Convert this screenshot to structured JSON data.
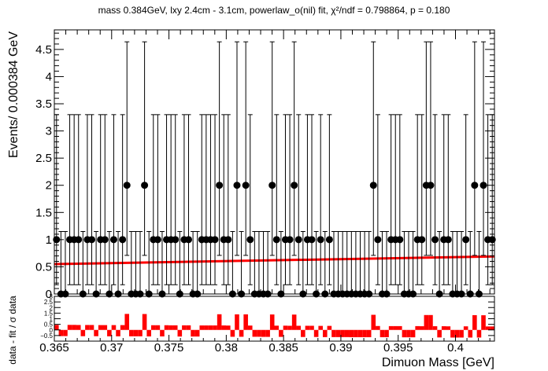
{
  "chart_data": [
    {
      "type": "scatter",
      "title": "mass 0.384GeV, lxy 2.4cm - 3.1cm, powerlaw_o(nil) fit, χ²/ndf = 0.798864, p = 0.180",
      "ylabel": "Events/ 0.000384 GeV",
      "xlabel": "",
      "xlim": [
        0.365,
        0.4034
      ],
      "ylim": [
        0,
        4.86
      ],
      "x_ticks": [
        "0.365",
        "0.37",
        "0.375",
        "0.38",
        "0.385",
        "0.39",
        "0.395",
        "0.4"
      ],
      "y_ticks": [
        "0",
        "0.5",
        "1",
        "1.5",
        "2",
        "2.5",
        "3",
        "3.5",
        "4",
        "4.5"
      ],
      "grid": false,
      "series": [
        {
          "kind": "data",
          "color": "#000000",
          "x": [
            0.365192,
            0.365576,
            0.36596,
            0.366344,
            0.366728,
            0.367112,
            0.367496,
            0.36788,
            0.368264,
            0.368648,
            0.369032,
            0.369416,
            0.3698,
            0.370184,
            0.370568,
            0.370952,
            0.371336,
            0.37172,
            0.372104,
            0.372488,
            0.372872,
            0.373256,
            0.37364,
            0.374024,
            0.374408,
            0.374792,
            0.375176,
            0.37556,
            0.375944,
            0.376328,
            0.376712,
            0.377096,
            0.37748,
            0.377864,
            0.378248,
            0.378632,
            0.379016,
            0.3794,
            0.379784,
            0.380168,
            0.380552,
            0.380936,
            0.38132,
            0.381704,
            0.382088,
            0.382472,
            0.382856,
            0.38324,
            0.383624,
            0.384008,
            0.384392,
            0.384776,
            0.38516,
            0.385544,
            0.385928,
            0.386312,
            0.386696,
            0.38708,
            0.387464,
            0.387848,
            0.388232,
            0.388616,
            0.389,
            0.389384,
            0.389768,
            0.390152,
            0.390536,
            0.39092,
            0.391304,
            0.391688,
            0.392072,
            0.392456,
            0.39284,
            0.393224,
            0.393608,
            0.393992,
            0.394376,
            0.39476,
            0.395144,
            0.395528,
            0.395912,
            0.396296,
            0.39668,
            0.397064,
            0.397448,
            0.397832,
            0.398216,
            0.3986,
            0.398984,
            0.399368,
            0.399752,
            0.400136,
            0.40052,
            0.400904,
            0.401288,
            0.401672,
            0.402056,
            0.40244,
            0.402824,
            0.403208
          ],
          "y": [
            1,
            0,
            0,
            1,
            1,
            1,
            0,
            1,
            1,
            0,
            1,
            1,
            0,
            1,
            0,
            1,
            2,
            0,
            0,
            0,
            2,
            0,
            1,
            1,
            0,
            1,
            1,
            1,
            0,
            1,
            1,
            0,
            0,
            1,
            1,
            1,
            1,
            2,
            1,
            1,
            0,
            2,
            0,
            2,
            1,
            0,
            0,
            0,
            0,
            2,
            1,
            0,
            1,
            1,
            2,
            1,
            0,
            1,
            1,
            0,
            1,
            0,
            1,
            0,
            0,
            0,
            0,
            0,
            0,
            0,
            0,
            0,
            2,
            1,
            0,
            0,
            1,
            1,
            1,
            0,
            0,
            0,
            1,
            1,
            2,
            2,
            1,
            0,
            1,
            1,
            0,
            0,
            0,
            1,
            0,
            2,
            0,
            2,
            1,
            1
          ]
        },
        {
          "kind": "fit",
          "color": "#ff0000",
          "x": [
            0.365,
            0.4034
          ],
          "y": [
            0.55,
            0.69
          ]
        }
      ]
    },
    {
      "type": "bar",
      "ylabel": "data - fit / σ data",
      "xlabel": "Dimuon Mass [GeV]",
      "xlim": [
        0.365,
        0.4034
      ],
      "ylim": [
        -1,
        3
      ],
      "y_ticks": [
        "−0.5",
        "0",
        "0.5",
        "1",
        "1.5",
        "2",
        "2.5",
        "3"
      ],
      "x_ticks": [
        "0.365",
        "0.37",
        "0.375",
        "0.38",
        "0.385",
        "0.39",
        "0.395",
        "0.4"
      ],
      "grid": false,
      "series": [
        {
          "name": "",
          "color": "#ff0000",
          "x": [
            0.365192,
            0.365576,
            0.36596,
            0.366344,
            0.366728,
            0.367112,
            0.367496,
            0.36788,
            0.368264,
            0.368648,
            0.369032,
            0.369416,
            0.3698,
            0.370184,
            0.370568,
            0.370952,
            0.371336,
            0.37172,
            0.372104,
            0.372488,
            0.372872,
            0.373256,
            0.37364,
            0.374024,
            0.374408,
            0.374792,
            0.375176,
            0.37556,
            0.375944,
            0.376328,
            0.376712,
            0.377096,
            0.37748,
            0.377864,
            0.378248,
            0.378632,
            0.379016,
            0.3794,
            0.379784,
            0.380168,
            0.380552,
            0.380936,
            0.38132,
            0.381704,
            0.382088,
            0.382472,
            0.382856,
            0.38324,
            0.383624,
            0.384008,
            0.384392,
            0.384776,
            0.38516,
            0.385544,
            0.385928,
            0.386312,
            0.386696,
            0.38708,
            0.387464,
            0.387848,
            0.388232,
            0.388616,
            0.389,
            0.389384,
            0.389768,
            0.390152,
            0.390536,
            0.39092,
            0.391304,
            0.391688,
            0.392072,
            0.392456,
            0.39284,
            0.393224,
            0.393608,
            0.393992,
            0.394376,
            0.39476,
            0.395144,
            0.395528,
            0.395912,
            0.396296,
            0.39668,
            0.397064,
            0.397448,
            0.397832,
            0.398216,
            0.3986,
            0.398984,
            0.399368,
            0.399752,
            0.400136,
            0.40052,
            0.400904,
            0.401288,
            0.401672,
            0.402056,
            0.40244,
            0.402824,
            0.403208
          ],
          "values": [
            0.45,
            -0.55,
            -0.55,
            0.45,
            0.45,
            0.44,
            -0.56,
            0.44,
            0.44,
            -0.56,
            0.43,
            0.43,
            -0.57,
            0.43,
            -0.57,
            0.43,
            1.43,
            -0.57,
            -0.57,
            -0.57,
            1.42,
            -0.58,
            0.42,
            0.42,
            -0.58,
            0.42,
            0.41,
            0.41,
            -0.59,
            0.41,
            0.41,
            -0.59,
            -0.59,
            0.4,
            0.4,
            0.4,
            0.4,
            1.4,
            0.4,
            0.39,
            -0.61,
            1.39,
            -0.61,
            1.39,
            0.39,
            -0.61,
            -0.61,
            -0.62,
            -0.62,
            1.38,
            0.38,
            -0.62,
            0.38,
            0.37,
            1.37,
            0.37,
            -0.63,
            0.37,
            0.37,
            -0.63,
            0.36,
            -0.64,
            0.36,
            -0.64,
            -0.64,
            -0.64,
            -0.64,
            -0.65,
            -0.65,
            -0.65,
            -0.65,
            -0.65,
            1.35,
            0.35,
            -0.65,
            -0.65,
            0.34,
            0.34,
            0.34,
            -0.66,
            -0.66,
            -0.66,
            0.34,
            0.33,
            1.33,
            1.33,
            0.33,
            -0.67,
            0.33,
            0.32,
            -0.68,
            -0.68,
            -0.68,
            0.32,
            -0.68,
            1.32,
            -0.68,
            1.31,
            0.31,
            0.31
          ]
        }
      ]
    }
  ]
}
